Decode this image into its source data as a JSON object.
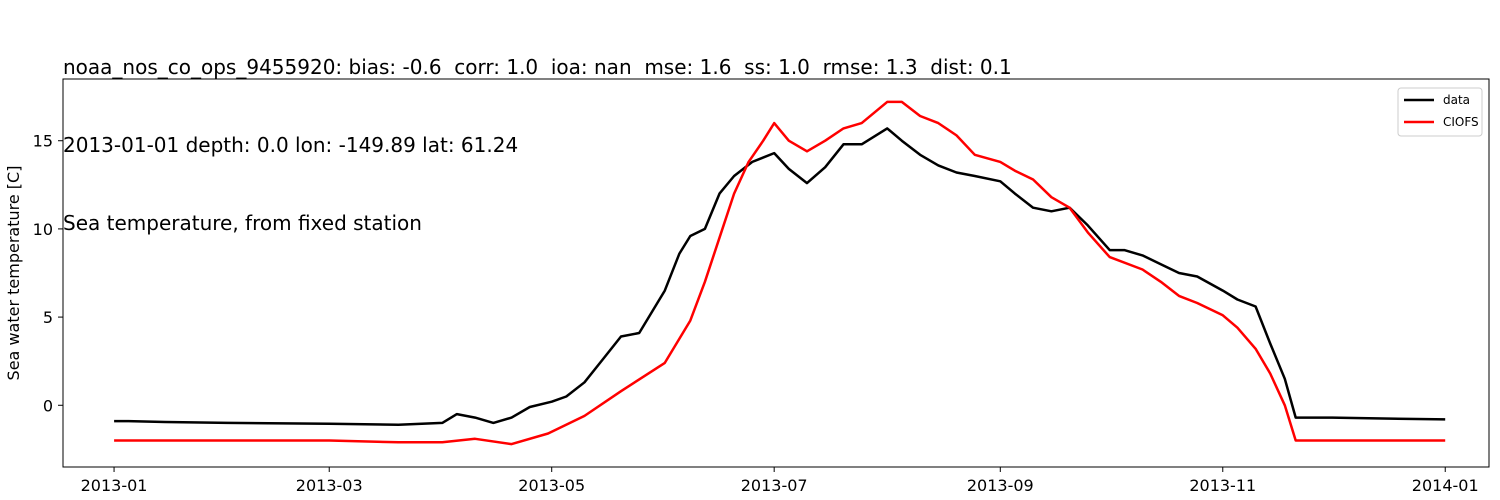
{
  "chart_data": {
    "type": "line",
    "title": [
      "noaa_nos_co_ops_9455920: bias: -0.6  corr: 1.0  ioa: nan  mse: 1.6  ss: 1.0  rmse: 1.3  dist: 0.1",
      "2013-01-01 depth: 0.0 lon: -149.89 lat: 61.24",
      "Sea temperature, from fixed station"
    ],
    "xlabel": "",
    "ylabel": "Sea water temperature [C]",
    "xlim": [
      "2012-12-18",
      "2014-01-13"
    ],
    "ylim": [
      -3.5,
      18.5
    ],
    "x_ticks": [
      "2013-01",
      "2013-03",
      "2013-05",
      "2013-07",
      "2013-09",
      "2013-11",
      "2014-01"
    ],
    "y_ticks": [
      0,
      5,
      10,
      15
    ],
    "grid": false,
    "legend_position": "top-right",
    "series": [
      {
        "name": "data",
        "color": "#000000",
        "points": [
          [
            "2013-01-01",
            -0.9
          ],
          [
            "2013-01-05",
            -0.9
          ],
          [
            "2013-01-15",
            -0.95
          ],
          [
            "2013-02-01",
            -1.0
          ],
          [
            "2013-03-01",
            -1.05
          ],
          [
            "2013-03-20",
            -1.1
          ],
          [
            "2013-04-01",
            -1.0
          ],
          [
            "2013-04-05",
            -0.5
          ],
          [
            "2013-04-10",
            -0.7
          ],
          [
            "2013-04-15",
            -1.0
          ],
          [
            "2013-04-20",
            -0.7
          ],
          [
            "2013-04-25",
            -0.1
          ],
          [
            "2013-05-01",
            0.2
          ],
          [
            "2013-05-05",
            0.5
          ],
          [
            "2013-05-10",
            1.3
          ],
          [
            "2013-05-15",
            2.6
          ],
          [
            "2013-05-20",
            3.9
          ],
          [
            "2013-05-25",
            4.1
          ],
          [
            "2013-06-01",
            6.5
          ],
          [
            "2013-06-05",
            8.6
          ],
          [
            "2013-06-08",
            9.6
          ],
          [
            "2013-06-12",
            10.0
          ],
          [
            "2013-06-16",
            12.0
          ],
          [
            "2013-06-20",
            13.0
          ],
          [
            "2013-06-25",
            13.8
          ],
          [
            "2013-07-01",
            14.3
          ],
          [
            "2013-07-05",
            13.4
          ],
          [
            "2013-07-10",
            12.6
          ],
          [
            "2013-07-15",
            13.5
          ],
          [
            "2013-07-20",
            14.8
          ],
          [
            "2013-07-25",
            14.8
          ],
          [
            "2013-08-01",
            15.7
          ],
          [
            "2013-08-05",
            15.0
          ],
          [
            "2013-08-10",
            14.2
          ],
          [
            "2013-08-15",
            13.6
          ],
          [
            "2013-08-20",
            13.2
          ],
          [
            "2013-08-25",
            13.0
          ],
          [
            "2013-09-01",
            12.7
          ],
          [
            "2013-09-05",
            12.0
          ],
          [
            "2013-09-10",
            11.2
          ],
          [
            "2013-09-15",
            11.0
          ],
          [
            "2013-09-20",
            11.2
          ],
          [
            "2013-09-25",
            10.2
          ],
          [
            "2013-10-01",
            8.8
          ],
          [
            "2013-10-05",
            8.8
          ],
          [
            "2013-10-10",
            8.5
          ],
          [
            "2013-10-15",
            8.0
          ],
          [
            "2013-10-20",
            7.5
          ],
          [
            "2013-10-25",
            7.3
          ],
          [
            "2013-11-01",
            6.5
          ],
          [
            "2013-11-05",
            6.0
          ],
          [
            "2013-11-10",
            5.6
          ],
          [
            "2013-11-14",
            3.5
          ],
          [
            "2013-11-18",
            1.5
          ],
          [
            "2013-11-21",
            -0.7
          ],
          [
            "2013-12-01",
            -0.7
          ],
          [
            "2013-12-15",
            -0.75
          ],
          [
            "2014-01-01",
            -0.8
          ]
        ]
      },
      {
        "name": "CIOFS",
        "color": "#ff0000",
        "points": [
          [
            "2013-01-01",
            -2.0
          ],
          [
            "2013-02-01",
            -2.0
          ],
          [
            "2013-03-01",
            -2.0
          ],
          [
            "2013-03-20",
            -2.1
          ],
          [
            "2013-04-01",
            -2.1
          ],
          [
            "2013-04-10",
            -1.9
          ],
          [
            "2013-04-20",
            -2.2
          ],
          [
            "2013-04-30",
            -1.6
          ],
          [
            "2013-05-10",
            -0.6
          ],
          [
            "2013-05-20",
            0.8
          ],
          [
            "2013-06-01",
            2.4
          ],
          [
            "2013-06-08",
            4.8
          ],
          [
            "2013-06-12",
            7.0
          ],
          [
            "2013-06-16",
            9.5
          ],
          [
            "2013-06-20",
            12.0
          ],
          [
            "2013-06-24",
            13.8
          ],
          [
            "2013-06-28",
            15.0
          ],
          [
            "2013-07-01",
            16.0
          ],
          [
            "2013-07-05",
            15.0
          ],
          [
            "2013-07-10",
            14.4
          ],
          [
            "2013-07-15",
            15.0
          ],
          [
            "2013-07-20",
            15.7
          ],
          [
            "2013-07-25",
            16.0
          ],
          [
            "2013-08-01",
            17.2
          ],
          [
            "2013-08-05",
            17.2
          ],
          [
            "2013-08-10",
            16.4
          ],
          [
            "2013-08-15",
            16.0
          ],
          [
            "2013-08-20",
            15.3
          ],
          [
            "2013-08-25",
            14.2
          ],
          [
            "2013-09-01",
            13.8
          ],
          [
            "2013-09-05",
            13.3
          ],
          [
            "2013-09-10",
            12.8
          ],
          [
            "2013-09-15",
            11.8
          ],
          [
            "2013-09-20",
            11.2
          ],
          [
            "2013-09-25",
            9.8
          ],
          [
            "2013-10-01",
            8.4
          ],
          [
            "2013-10-10",
            7.7
          ],
          [
            "2013-10-15",
            7.0
          ],
          [
            "2013-10-20",
            6.2
          ],
          [
            "2013-10-25",
            5.8
          ],
          [
            "2013-11-01",
            5.1
          ],
          [
            "2013-11-05",
            4.4
          ],
          [
            "2013-11-10",
            3.2
          ],
          [
            "2013-11-14",
            1.8
          ],
          [
            "2013-11-18",
            0.0
          ],
          [
            "2013-11-21",
            -2.0
          ],
          [
            "2013-12-01",
            -2.0
          ],
          [
            "2014-01-01",
            -2.0
          ]
        ]
      }
    ]
  }
}
